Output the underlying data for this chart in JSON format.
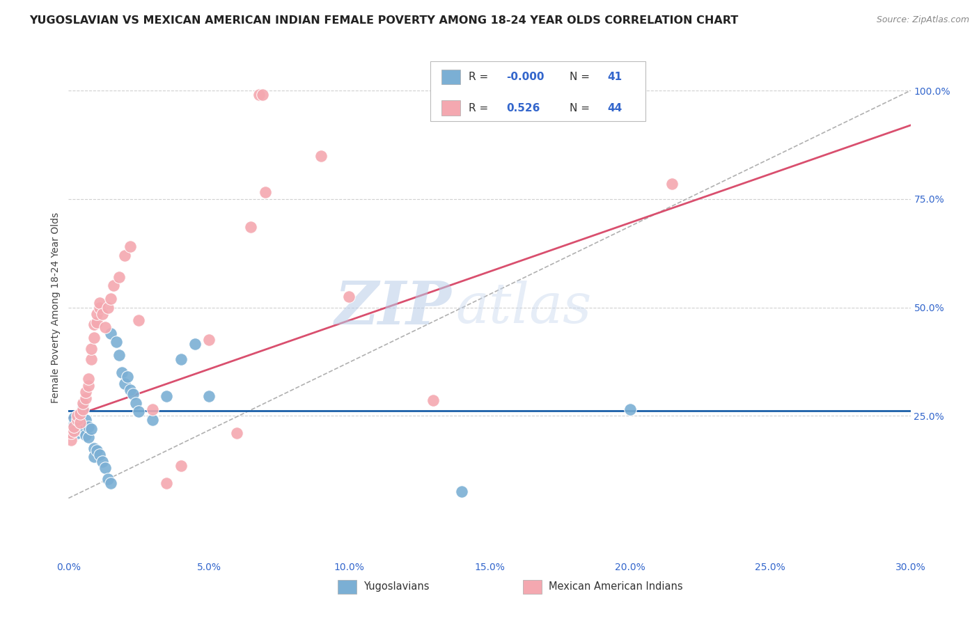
{
  "title": "YUGOSLAVIAN VS MEXICAN AMERICAN INDIAN FEMALE POVERTY AMONG 18-24 YEAR OLDS CORRELATION CHART",
  "source": "Source: ZipAtlas.com",
  "ylabel": "Female Poverty Among 18-24 Year Olds",
  "ylabel_right_ticks": [
    "100.0%",
    "75.0%",
    "50.0%",
    "25.0%"
  ],
  "ylabel_right_vals": [
    1.0,
    0.75,
    0.5,
    0.25
  ],
  "legend_labels": [
    "Yugoslavians",
    "Mexican American Indians"
  ],
  "blue_color": "#7bafd4",
  "pink_color": "#f4a8b0",
  "blue_line_color": "#1a5fa8",
  "pink_line_color": "#d94f6e",
  "dashed_line_color": "#b0b0b0",
  "watermark_zip": "ZIP",
  "watermark_atlas": "atlas",
  "xmin": 0.0,
  "xmax": 0.3,
  "ymin": -0.08,
  "ymax": 1.08,
  "yugoslav_points": [
    [
      0.001,
      0.215
    ],
    [
      0.001,
      0.225
    ],
    [
      0.002,
      0.23
    ],
    [
      0.002,
      0.245
    ],
    [
      0.003,
      0.22
    ],
    [
      0.003,
      0.235
    ],
    [
      0.003,
      0.21
    ],
    [
      0.004,
      0.228
    ],
    [
      0.004,
      0.218
    ],
    [
      0.005,
      0.27
    ],
    [
      0.005,
      0.215
    ],
    [
      0.006,
      0.205
    ],
    [
      0.006,
      0.24
    ],
    [
      0.007,
      0.2
    ],
    [
      0.007,
      0.225
    ],
    [
      0.008,
      0.22
    ],
    [
      0.009,
      0.175
    ],
    [
      0.009,
      0.155
    ],
    [
      0.01,
      0.17
    ],
    [
      0.011,
      0.16
    ],
    [
      0.012,
      0.145
    ],
    [
      0.013,
      0.13
    ],
    [
      0.014,
      0.105
    ],
    [
      0.015,
      0.095
    ],
    [
      0.015,
      0.44
    ],
    [
      0.017,
      0.42
    ],
    [
      0.018,
      0.39
    ],
    [
      0.019,
      0.35
    ],
    [
      0.02,
      0.325
    ],
    [
      0.021,
      0.34
    ],
    [
      0.022,
      0.31
    ],
    [
      0.023,
      0.3
    ],
    [
      0.024,
      0.28
    ],
    [
      0.025,
      0.26
    ],
    [
      0.03,
      0.24
    ],
    [
      0.035,
      0.295
    ],
    [
      0.04,
      0.38
    ],
    [
      0.045,
      0.415
    ],
    [
      0.05,
      0.295
    ],
    [
      0.2,
      0.265
    ],
    [
      0.14,
      0.075
    ]
  ],
  "mexican_points": [
    [
      0.001,
      0.195
    ],
    [
      0.001,
      0.21
    ],
    [
      0.002,
      0.215
    ],
    [
      0.002,
      0.225
    ],
    [
      0.003,
      0.24
    ],
    [
      0.003,
      0.25
    ],
    [
      0.004,
      0.235
    ],
    [
      0.004,
      0.255
    ],
    [
      0.005,
      0.265
    ],
    [
      0.005,
      0.28
    ],
    [
      0.006,
      0.29
    ],
    [
      0.006,
      0.305
    ],
    [
      0.007,
      0.32
    ],
    [
      0.007,
      0.335
    ],
    [
      0.008,
      0.38
    ],
    [
      0.008,
      0.405
    ],
    [
      0.009,
      0.43
    ],
    [
      0.009,
      0.46
    ],
    [
      0.01,
      0.465
    ],
    [
      0.01,
      0.485
    ],
    [
      0.011,
      0.5
    ],
    [
      0.011,
      0.51
    ],
    [
      0.012,
      0.485
    ],
    [
      0.013,
      0.455
    ],
    [
      0.014,
      0.5
    ],
    [
      0.015,
      0.52
    ],
    [
      0.016,
      0.55
    ],
    [
      0.018,
      0.57
    ],
    [
      0.02,
      0.62
    ],
    [
      0.022,
      0.64
    ],
    [
      0.025,
      0.47
    ],
    [
      0.03,
      0.265
    ],
    [
      0.035,
      0.095
    ],
    [
      0.04,
      0.135
    ],
    [
      0.05,
      0.425
    ],
    [
      0.065,
      0.685
    ],
    [
      0.07,
      0.765
    ],
    [
      0.09,
      0.85
    ],
    [
      0.1,
      0.525
    ],
    [
      0.06,
      0.21
    ],
    [
      0.215,
      0.785
    ],
    [
      0.13,
      0.285
    ],
    [
      0.068,
      0.99
    ],
    [
      0.069,
      0.99
    ]
  ],
  "blue_horiz_line_y": 0.262,
  "pink_trend": [
    0.0,
    0.245,
    0.3,
    0.92
  ],
  "dashed_trend": [
    0.0,
    0.06,
    0.3,
    1.0
  ]
}
